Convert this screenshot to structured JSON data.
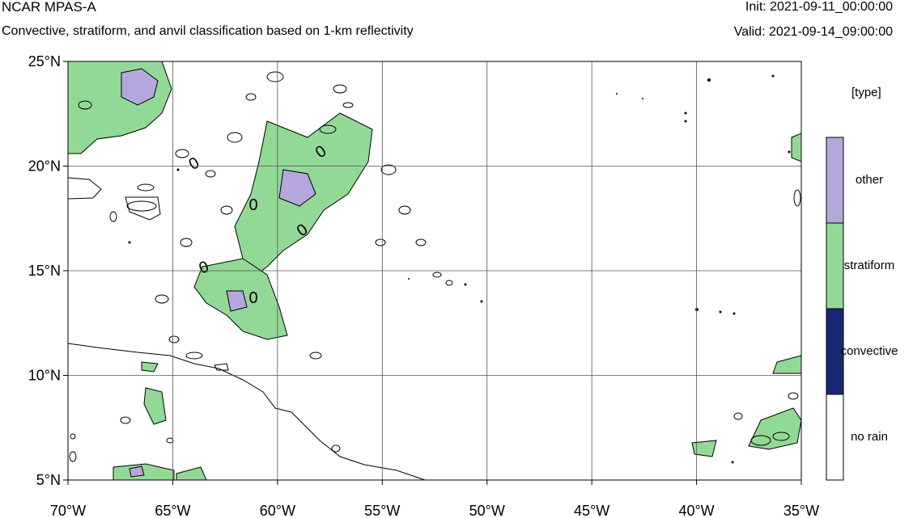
{
  "header": {
    "title": "NCAR MPAS-A",
    "subtitle": "Convective, stratiform, and anvil classification based on 1-km reflectivity",
    "init": "Init: 2021-09-11_00:00:00",
    "valid": "Valid: 2021-09-14_09:00:00"
  },
  "map": {
    "lon_range": [
      -70,
      -35
    ],
    "lat_range": [
      5,
      25
    ],
    "lon_ticks": [
      {
        "value": -70,
        "label": "70°W"
      },
      {
        "value": -65,
        "label": "65°W"
      },
      {
        "value": -60,
        "label": "60°W"
      },
      {
        "value": -55,
        "label": "55°W"
      },
      {
        "value": -50,
        "label": "50°W"
      },
      {
        "value": -45,
        "label": "45°W"
      },
      {
        "value": -40,
        "label": "40°W"
      },
      {
        "value": -35,
        "label": "35°W"
      }
    ],
    "lat_ticks": [
      {
        "value": 25,
        "label": "25°N"
      },
      {
        "value": 20,
        "label": "20°N"
      },
      {
        "value": 15,
        "label": "15°N"
      },
      {
        "value": 10,
        "label": "10°N"
      },
      {
        "value": 5,
        "label": "5°N"
      }
    ],
    "grid": true,
    "contour_labels": [
      "0",
      "0",
      "0",
      "0",
      "0",
      "0"
    ]
  },
  "legend": {
    "title": "[type]",
    "items": [
      {
        "label": "other",
        "color": "#b4a7dc"
      },
      {
        "label": "stratiform",
        "color": "#93d996"
      },
      {
        "label": "convective",
        "color": "#1a2874"
      },
      {
        "label": "no rain",
        "color": "#ffffff"
      }
    ]
  },
  "colors": {
    "grid": "#555555",
    "coast": "#000000",
    "contour": "#000000"
  }
}
